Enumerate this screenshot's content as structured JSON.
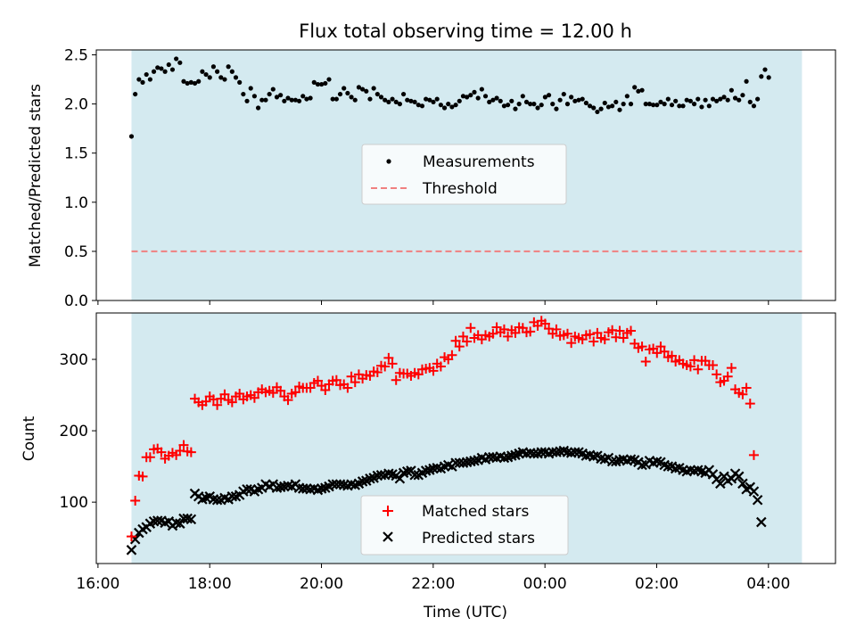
{
  "chart_data": {
    "title": "Flux total observing time = 12.00 h",
    "xlabel": "Time (UTC)",
    "xticks": [
      "16:00",
      "18:00",
      "20:00",
      "22:00",
      "00:00",
      "02:00",
      "04:00"
    ],
    "xtick_hours": [
      16,
      18,
      20,
      22,
      24,
      26,
      28
    ],
    "x_range_hours": [
      15.97,
      29.2
    ],
    "observing_window_hours": [
      16.6,
      28.6
    ],
    "colors": {
      "shade": "#d4eaf0",
      "threshold": "#f08080",
      "measurements": "#000000",
      "matched": "#ff0000",
      "predicted": "#000000"
    },
    "panels": [
      {
        "type": "scatter",
        "ylabel": "Matched/Predicted stars",
        "ylim": [
          0,
          2.55
        ],
        "yticks": [
          "0.0",
          "0.5",
          "1.0",
          "1.5",
          "2.0",
          "2.5"
        ],
        "ytick_values": [
          0,
          0.5,
          1.0,
          1.5,
          2.0,
          2.5
        ],
        "legend": {
          "placement": "center",
          "entries": [
            "Measurements",
            "Threshold"
          ]
        },
        "threshold": 0.5,
        "x_step_hours": 0.0667,
        "x_start_hours": 16.6,
        "measurements": [
          1.67,
          2.1,
          2.25,
          2.22,
          2.3,
          2.25,
          2.33,
          2.37,
          2.36,
          2.33,
          2.4,
          2.35,
          2.46,
          2.42,
          2.23,
          2.21,
          2.22,
          2.21,
          2.23,
          2.33,
          2.3,
          2.27,
          2.38,
          2.33,
          2.27,
          2.25,
          2.38,
          2.33,
          2.27,
          2.22,
          2.1,
          2.03,
          2.16,
          2.08,
          1.96,
          2.04,
          2.04,
          2.1,
          2.15,
          2.07,
          2.09,
          2.03,
          2.06,
          2.04,
          2.04,
          2.03,
          2.08,
          2.05,
          2.06,
          2.22,
          2.2,
          2.2,
          2.21,
          2.25,
          2.05,
          2.05,
          2.1,
          2.16,
          2.11,
          2.07,
          2.04,
          2.17,
          2.15,
          2.13,
          2.05,
          2.16,
          2.1,
          2.07,
          2.04,
          2.02,
          2.05,
          2.02,
          2.0,
          2.1,
          2.04,
          2.03,
          2.02,
          1.99,
          1.98,
          2.05,
          2.04,
          2.02,
          2.05,
          1.99,
          1.96,
          2.0,
          1.97,
          1.99,
          2.03,
          2.08,
          2.07,
          2.09,
          2.12,
          2.06,
          2.15,
          2.08,
          2.02,
          2.04,
          2.06,
          2.03,
          1.98,
          1.99,
          2.03,
          1.95,
          2.0,
          2.08,
          2.02,
          2.0,
          2.0,
          1.96,
          1.99,
          2.07,
          2.09,
          2.0,
          1.95,
          2.04,
          2.1,
          2.0,
          2.07,
          2.03,
          2.04,
          2.05,
          2.01,
          1.98,
          1.96,
          1.92,
          1.95,
          2.01,
          1.97,
          1.98,
          2.02,
          1.94,
          2.0,
          2.08,
          2.0,
          2.17,
          2.13,
          2.14,
          2.0,
          2.0,
          1.99,
          1.99,
          2.02,
          2.0,
          2.05,
          1.99,
          2.03,
          1.98,
          1.98,
          2.04,
          2.03,
          2.0,
          2.05,
          1.97,
          2.04,
          1.98,
          2.05,
          2.03,
          2.05,
          2.07,
          2.04,
          2.14,
          2.06,
          2.04,
          2.09,
          2.23,
          2.02,
          1.98,
          2.05,
          2.28,
          2.35,
          2.27
        ]
      },
      {
        "type": "scatter",
        "ylabel": "Count",
        "ylim": [
          14,
          365
        ],
        "yticks": [
          "100",
          "200",
          "300"
        ],
        "ytick_values": [
          100,
          200,
          300
        ],
        "legend": {
          "placement": "bottom-center",
          "entries": [
            "Matched stars",
            "Predicted stars"
          ]
        },
        "x_step_hours": 0.0667,
        "x_start_hours": 16.6,
        "matched": [
          52,
          102,
          137,
          136,
          163,
          163,
          174,
          175,
          170,
          161,
          165,
          169,
          166,
          172,
          180,
          171,
          170,
          245,
          240,
          236,
          241,
          248,
          244,
          236,
          245,
          251,
          243,
          240,
          248,
          252,
          244,
          248,
          250,
          246,
          254,
          258,
          254,
          256,
          253,
          261,
          256,
          248,
          243,
          252,
          254,
          262,
          260,
          260,
          260,
          267,
          270,
          263,
          257,
          265,
          270,
          271,
          264,
          265,
          260,
          276,
          268,
          279,
          273,
          278,
          277,
          283,
          282,
          291,
          290,
          302,
          294,
          271,
          281,
          280,
          280,
          277,
          281,
          279,
          286,
          287,
          288,
          284,
          294,
          290,
          303,
          300,
          306,
          326,
          318,
          332,
          325,
          344,
          330,
          334,
          328,
          334,
          332,
          336,
          345,
          338,
          342,
          332,
          341,
          337,
          345,
          344,
          338,
          339,
          352,
          347,
          354,
          350,
          343,
          336,
          342,
          333,
          334,
          336,
          323,
          332,
          330,
          328,
          334,
          335,
          325,
          337,
          330,
          328,
          338,
          341,
          331,
          340,
          330,
          337,
          340,
          322,
          316,
          318,
          297,
          314,
          315,
          309,
          318,
          311,
          303,
          305,
          297,
          299,
          294,
          292,
          290,
          299,
          286,
          298,
          298,
          292,
          292,
          279,
          268,
          270,
          276,
          288,
          258,
          253,
          251,
          260,
          238,
          166
        ],
        "predicted": [
          33,
          48,
          57,
          62,
          65,
          70,
          73,
          74,
          74,
          71,
          73,
          67,
          71,
          70,
          77,
          77,
          76,
          112,
          108,
          104,
          106,
          108,
          104,
          103,
          103,
          106,
          104,
          108,
          108,
          110,
          115,
          118,
          118,
          115,
          118,
          120,
          125,
          122,
          125,
          120,
          121,
          122,
          123,
          122,
          125,
          120,
          119,
          119,
          118,
          119,
          117,
          119,
          120,
          122,
          125,
          125,
          125,
          124,
          123,
          125,
          124,
          126,
          129,
          130,
          133,
          134,
          137,
          138,
          138,
          140,
          139,
          137,
          133,
          141,
          143,
          144,
          138,
          138,
          141,
          144,
          145,
          147,
          148,
          147,
          150,
          152,
          150,
          155,
          155,
          155,
          156,
          157,
          158,
          159,
          162,
          160,
          163,
          163,
          162,
          164,
          162,
          163,
          165,
          166,
          168,
          170,
          168,
          169,
          168,
          168,
          170,
          170,
          168,
          170,
          170,
          171,
          172,
          170,
          169,
          170,
          170,
          168,
          165,
          166,
          164,
          165,
          161,
          160,
          162,
          157,
          157,
          159,
          160,
          158,
          160,
          159,
          156,
          152,
          153,
          158,
          155,
          157,
          156,
          152,
          150,
          150,
          147,
          148,
          145,
          143,
          145,
          144,
          145,
          143,
          141,
          145,
          139,
          132,
          126,
          136,
          130,
          133,
          140,
          136,
          126,
          118,
          121,
          115,
          103,
          72
        ]
      }
    ]
  }
}
